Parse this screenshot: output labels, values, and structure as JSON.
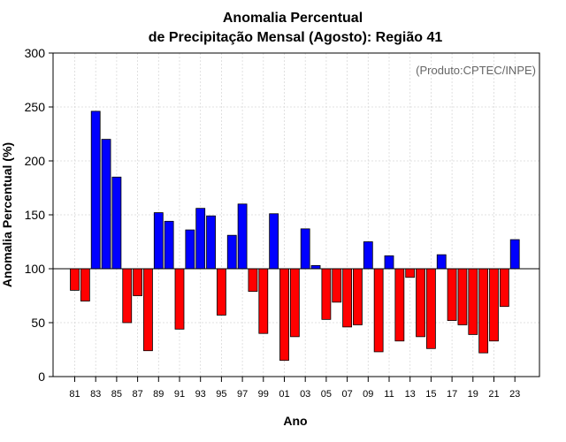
{
  "chart_data": {
    "type": "bar",
    "title_line1": "Anomalia Percentual",
    "title_line2": "de Precipitação Mensal (Agosto): Região 41",
    "credit": "(Produto:CPTEC/INPE)",
    "xlabel": "Ano",
    "ylabel": "Anomalia Percentual (%)",
    "ylim": [
      0,
      300
    ],
    "yticks": [
      0,
      50,
      100,
      150,
      200,
      250,
      300
    ],
    "baseline": 100,
    "grid": true,
    "colors": {
      "above": "#0000ff",
      "below": "#ff0000",
      "edge": "#000000"
    },
    "categories": [
      "81",
      "82",
      "83",
      "84",
      "85",
      "86",
      "87",
      "88",
      "89",
      "90",
      "91",
      "92",
      "93",
      "94",
      "95",
      "96",
      "97",
      "98",
      "99",
      "00",
      "01",
      "02",
      "03",
      "04",
      "05",
      "06",
      "07",
      "08",
      "09",
      "10",
      "11",
      "12",
      "13",
      "14",
      "15",
      "16",
      "17",
      "18",
      "19",
      "20",
      "21",
      "22",
      "23"
    ],
    "xtick_labels": [
      "81",
      "83",
      "85",
      "87",
      "89",
      "91",
      "93",
      "95",
      "97",
      "99",
      "01",
      "03",
      "05",
      "07",
      "09",
      "11",
      "13",
      "15",
      "17",
      "19",
      "21",
      "23"
    ],
    "values": [
      80,
      70,
      246,
      220,
      185,
      50,
      75,
      24,
      152,
      144,
      44,
      136,
      156,
      149,
      57,
      131,
      160,
      79,
      40,
      151,
      15,
      37,
      137,
      103,
      53,
      69,
      46,
      48,
      125,
      23,
      112,
      33,
      92,
      37,
      26,
      113,
      52,
      48,
      39,
      22,
      33,
      65,
      127
    ]
  }
}
